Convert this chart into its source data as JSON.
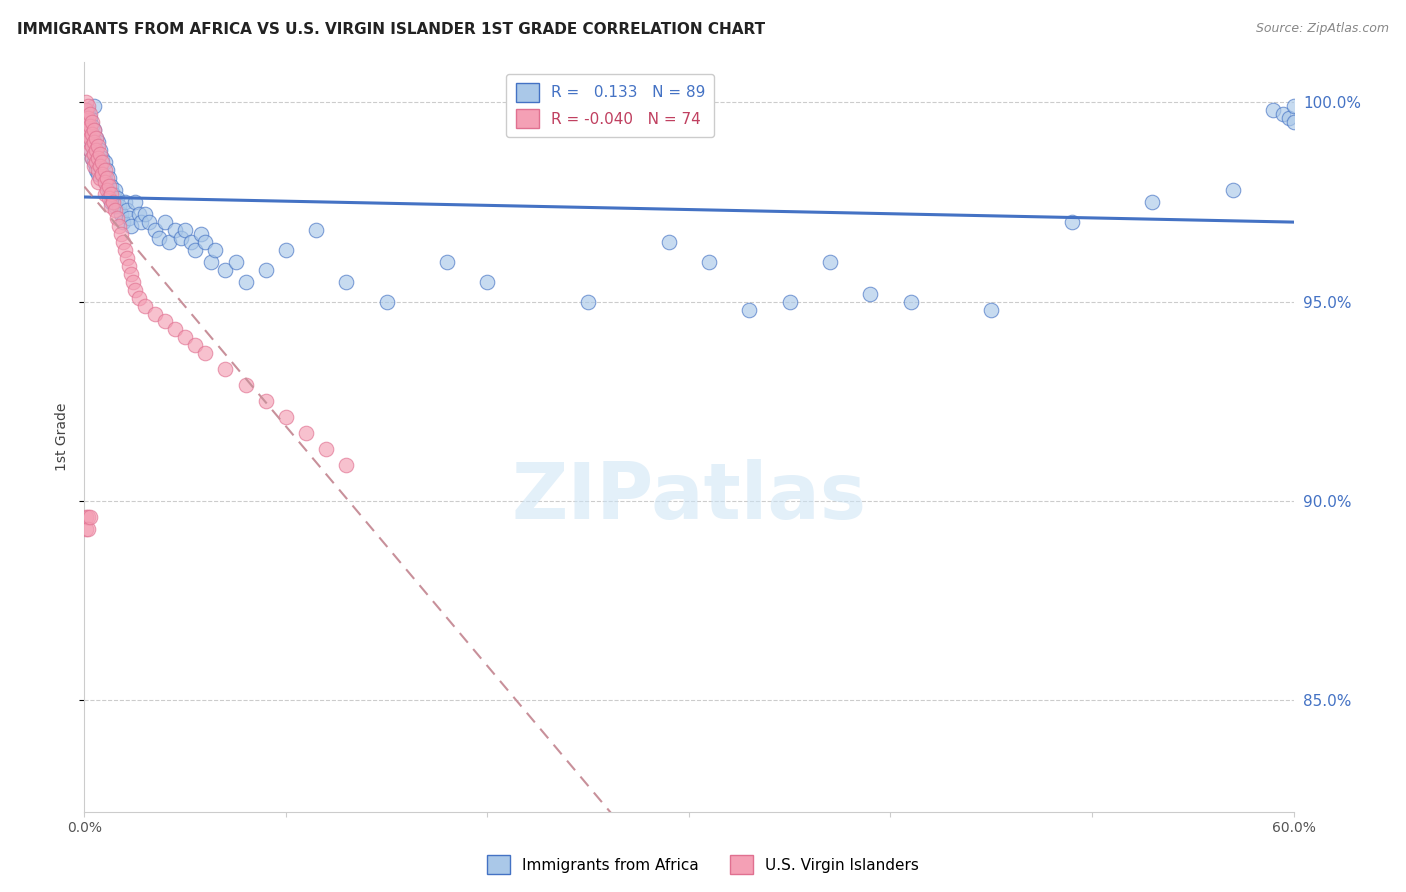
{
  "title": "IMMIGRANTS FROM AFRICA VS U.S. VIRGIN ISLANDER 1ST GRADE CORRELATION CHART",
  "source": "Source: ZipAtlas.com",
  "ylabel": "1st Grade",
  "legend_label1": "Immigrants from Africa",
  "legend_label2": "U.S. Virgin Islanders",
  "r1": 0.133,
  "n1": 89,
  "r2": -0.04,
  "n2": 74,
  "color_blue": "#aac8e8",
  "color_pink": "#f4a0b5",
  "color_blue_line": "#4472c4",
  "color_pink_line": "#c8909a",
  "x_min": 0.0,
  "x_max": 0.6,
  "y_min": 0.822,
  "y_max": 1.01,
  "yticks": [
    0.85,
    0.9,
    0.95,
    1.0
  ],
  "xticks": [
    0.0,
    0.1,
    0.2,
    0.3,
    0.4,
    0.5,
    0.6
  ],
  "xtick_labels": [
    "0.0%",
    "",
    "",
    "",
    "",
    "",
    "60.0%"
  ],
  "ytick_labels": [
    "85.0%",
    "90.0%",
    "95.0%",
    "100.0%"
  ],
  "blue_x": [
    0.001,
    0.001,
    0.002,
    0.002,
    0.002,
    0.003,
    0.003,
    0.003,
    0.004,
    0.004,
    0.004,
    0.005,
    0.005,
    0.005,
    0.005,
    0.006,
    0.006,
    0.006,
    0.007,
    0.007,
    0.007,
    0.008,
    0.008,
    0.009,
    0.009,
    0.01,
    0.01,
    0.011,
    0.011,
    0.012,
    0.012,
    0.013,
    0.013,
    0.014,
    0.015,
    0.015,
    0.016,
    0.017,
    0.018,
    0.019,
    0.02,
    0.021,
    0.022,
    0.023,
    0.025,
    0.027,
    0.028,
    0.03,
    0.032,
    0.035,
    0.037,
    0.04,
    0.042,
    0.045,
    0.048,
    0.05,
    0.053,
    0.055,
    0.058,
    0.06,
    0.063,
    0.065,
    0.07,
    0.075,
    0.08,
    0.09,
    0.1,
    0.115,
    0.13,
    0.15,
    0.18,
    0.2,
    0.25,
    0.29,
    0.33,
    0.37,
    0.39,
    0.41,
    0.45,
    0.49,
    0.53,
    0.57,
    0.59,
    0.595,
    0.598,
    0.6,
    0.6,
    0.31,
    0.35
  ],
  "blue_y": [
    0.997,
    0.995,
    0.998,
    0.993,
    0.99,
    0.996,
    0.992,
    0.988,
    0.994,
    0.99,
    0.986,
    0.993,
    0.989,
    0.985,
    0.999,
    0.991,
    0.987,
    0.983,
    0.99,
    0.986,
    0.982,
    0.988,
    0.984,
    0.986,
    0.982,
    0.985,
    0.981,
    0.983,
    0.979,
    0.981,
    0.977,
    0.979,
    0.975,
    0.977,
    0.978,
    0.974,
    0.976,
    0.974,
    0.972,
    0.97,
    0.975,
    0.973,
    0.971,
    0.969,
    0.975,
    0.972,
    0.97,
    0.972,
    0.97,
    0.968,
    0.966,
    0.97,
    0.965,
    0.968,
    0.966,
    0.968,
    0.965,
    0.963,
    0.967,
    0.965,
    0.96,
    0.963,
    0.958,
    0.96,
    0.955,
    0.958,
    0.963,
    0.968,
    0.955,
    0.95,
    0.96,
    0.955,
    0.95,
    0.965,
    0.948,
    0.96,
    0.952,
    0.95,
    0.948,
    0.97,
    0.975,
    0.978,
    0.998,
    0.997,
    0.996,
    0.999,
    0.995,
    0.96,
    0.95
  ],
  "pink_x": [
    0.001,
    0.001,
    0.001,
    0.001,
    0.001,
    0.002,
    0.002,
    0.002,
    0.002,
    0.003,
    0.003,
    0.003,
    0.003,
    0.004,
    0.004,
    0.004,
    0.004,
    0.005,
    0.005,
    0.005,
    0.005,
    0.006,
    0.006,
    0.006,
    0.007,
    0.007,
    0.007,
    0.007,
    0.008,
    0.008,
    0.008,
    0.009,
    0.009,
    0.01,
    0.01,
    0.01,
    0.011,
    0.011,
    0.012,
    0.012,
    0.013,
    0.013,
    0.014,
    0.015,
    0.016,
    0.017,
    0.018,
    0.019,
    0.02,
    0.021,
    0.022,
    0.023,
    0.024,
    0.025,
    0.027,
    0.03,
    0.035,
    0.04,
    0.045,
    0.05,
    0.055,
    0.06,
    0.07,
    0.08,
    0.09,
    0.1,
    0.11,
    0.12,
    0.13,
    0.001,
    0.001,
    0.002,
    0.002,
    0.003
  ],
  "pink_y": [
    1.0,
    0.998,
    0.996,
    0.994,
    0.992,
    0.999,
    0.996,
    0.993,
    0.99,
    0.997,
    0.994,
    0.991,
    0.988,
    0.995,
    0.992,
    0.989,
    0.986,
    0.993,
    0.99,
    0.987,
    0.984,
    0.991,
    0.988,
    0.985,
    0.989,
    0.986,
    0.983,
    0.98,
    0.987,
    0.984,
    0.981,
    0.985,
    0.982,
    0.983,
    0.98,
    0.977,
    0.981,
    0.978,
    0.979,
    0.976,
    0.977,
    0.974,
    0.975,
    0.973,
    0.971,
    0.969,
    0.967,
    0.965,
    0.963,
    0.961,
    0.959,
    0.957,
    0.955,
    0.953,
    0.951,
    0.949,
    0.947,
    0.945,
    0.943,
    0.941,
    0.939,
    0.937,
    0.933,
    0.929,
    0.925,
    0.921,
    0.917,
    0.913,
    0.909,
    0.896,
    0.893,
    0.896,
    0.893,
    0.896
  ]
}
